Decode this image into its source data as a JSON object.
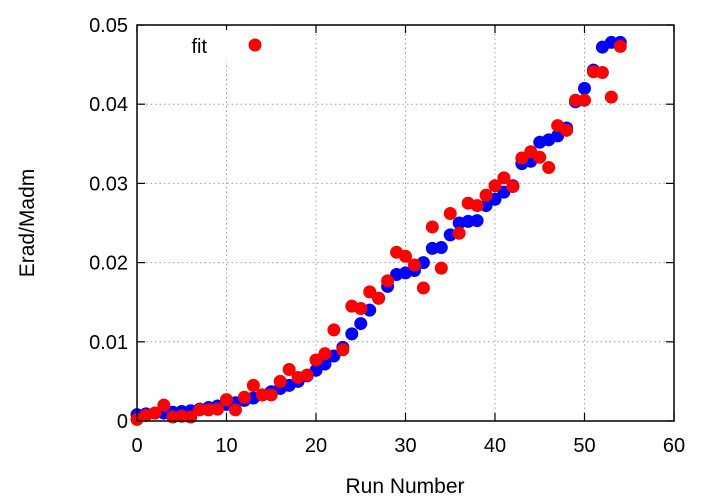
{
  "chart_data": {
    "type": "scatter",
    "title": "",
    "xlabel": "Run Number",
    "ylabel": "Erad/Madm",
    "xlim": [
      0,
      60
    ],
    "ylim": [
      0,
      0.05
    ],
    "xticks": [
      0,
      10,
      20,
      30,
      40,
      50,
      60
    ],
    "yticks": [
      0,
      0.01,
      0.02,
      0.03,
      0.04,
      0.05
    ],
    "xtick_labels": [
      "0",
      "10",
      "20",
      "30",
      "40",
      "50",
      "60"
    ],
    "ytick_labels": [
      "0",
      "0.01",
      "0.02",
      "0.03",
      "0.04",
      "0.05"
    ],
    "grid": true,
    "legend_position": "top-left",
    "series": [
      {
        "name": "",
        "color": "#0000ff",
        "x": [
          0,
          1,
          2,
          3,
          4,
          5,
          6,
          7,
          8,
          9,
          10,
          11,
          12,
          13,
          14,
          15,
          16,
          17,
          18,
          19,
          20,
          21,
          22,
          23,
          24,
          25,
          26,
          27,
          28,
          29,
          30,
          31,
          32,
          33,
          34,
          35,
          36,
          37,
          38,
          39,
          40,
          41,
          42,
          43,
          44,
          45,
          46,
          47,
          48,
          49,
          50,
          51,
          52,
          53,
          54
        ],
        "y": [
          0.0008,
          0.0009,
          0.001,
          0.001,
          0.0011,
          0.0012,
          0.0013,
          0.0015,
          0.0017,
          0.0019,
          0.0021,
          0.0023,
          0.0026,
          0.0029,
          0.0033,
          0.0037,
          0.0041,
          0.0045,
          0.005,
          0.0057,
          0.0064,
          0.0072,
          0.0082,
          0.0093,
          0.011,
          0.0123,
          0.014,
          0.0155,
          0.017,
          0.0185,
          0.0187,
          0.019,
          0.02,
          0.0218,
          0.0219,
          0.0235,
          0.025,
          0.0252,
          0.0253,
          0.0272,
          0.028,
          0.0289,
          0.0297,
          0.0325,
          0.0328,
          0.0352,
          0.0355,
          0.036,
          0.037,
          0.0403,
          0.042,
          0.0443,
          0.0472,
          0.0478,
          0.0478
        ]
      },
      {
        "name": "fit",
        "color": "#ff0000",
        "x": [
          0,
          1,
          2,
          3,
          4,
          5,
          6,
          7,
          8,
          9,
          10,
          11,
          12,
          13,
          14,
          15,
          16,
          17,
          18,
          19,
          20,
          21,
          22,
          23,
          24,
          25,
          26,
          27,
          28,
          29,
          30,
          31,
          32,
          33,
          34,
          35,
          36,
          37,
          38,
          39,
          40,
          41,
          42,
          43,
          44,
          45,
          46,
          47,
          48,
          49,
          50,
          51,
          52,
          53,
          54
        ],
        "y": [
          0.0002,
          0.0007,
          0.001,
          0.002,
          0.0005,
          0.0006,
          0.0005,
          0.0014,
          0.0014,
          0.0015,
          0.0027,
          0.0014,
          0.003,
          0.0045,
          0.0033,
          0.0033,
          0.005,
          0.0065,
          0.0055,
          0.0058,
          0.0077,
          0.0085,
          0.0115,
          0.009,
          0.0145,
          0.0142,
          0.0163,
          0.0155,
          0.0177,
          0.0213,
          0.0208,
          0.0197,
          0.0168,
          0.0245,
          0.0193,
          0.0262,
          0.0237,
          0.0275,
          0.0272,
          0.0285,
          0.0297,
          0.0307,
          0.0296,
          0.0332,
          0.034,
          0.0333,
          0.032,
          0.0373,
          0.0367,
          0.0405,
          0.0405,
          0.0441,
          0.044,
          0.0409,
          0.0473
        ]
      }
    ],
    "legend": {
      "label": "fit",
      "color": "#ff0000"
    }
  }
}
